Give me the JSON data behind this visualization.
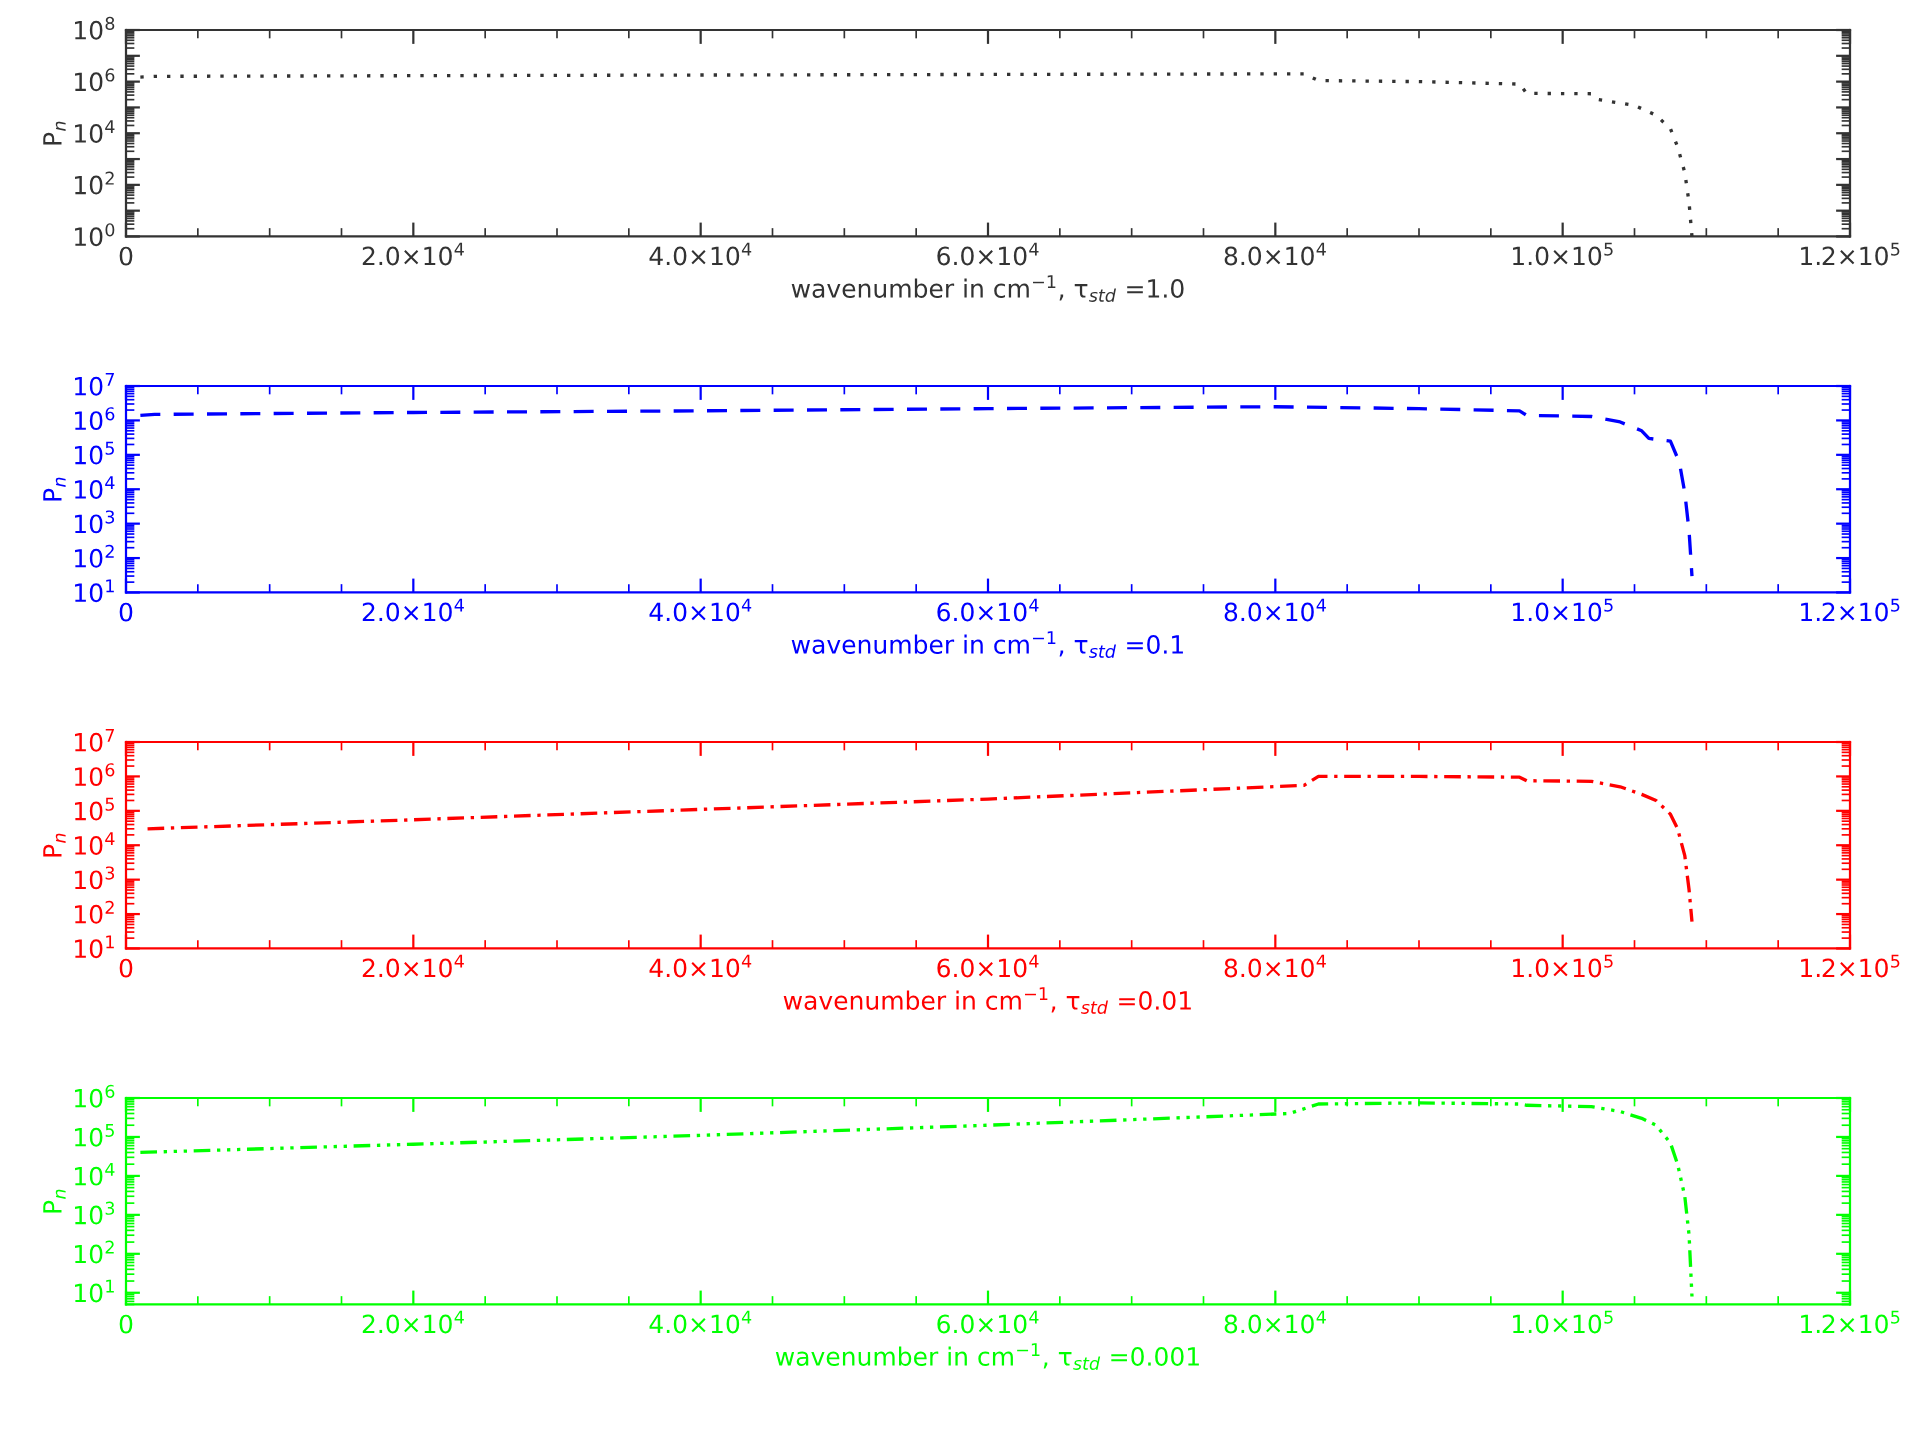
{
  "chart_data": [
    {
      "type": "line",
      "xlabel": "wavenumber in cm$^{−1}$, τ$_{std}$ =1.0",
      "ylabel": "P$_{n}$",
      "log": "y",
      "grid": false,
      "legend": false,
      "marker": "none",
      "xlim": [
        0,
        120000
      ],
      "xticks": [
        0,
        {
          "value": 20000,
          "label": "2.0×10$^{4}$"
        },
        {
          "value": 40000,
          "label": "4.0×10$^{4}$"
        },
        {
          "value": 60000,
          "label": "6.0×10$^{4}$"
        },
        {
          "value": 80000,
          "label": "8.0×10$^{4}$"
        },
        {
          "value": 100000,
          "label": "1.0×10$^{5}$"
        },
        {
          "value": 120000,
          "label": "1.2×10$^{5}$"
        }
      ],
      "ylim": [
        1,
        100000000
      ],
      "yticks": [
        {
          "value": 1,
          "label": "10$^{0}$"
        },
        {
          "value": 10,
          "label": null
        },
        {
          "value": 100,
          "label": "10$^{2}$"
        },
        {
          "value": 1000,
          "label": null
        },
        {
          "value": 10000,
          "label": "10$^{4}$"
        },
        {
          "value": 100000,
          "label": null
        },
        {
          "value": 1000000,
          "label": "10$^{6}$"
        },
        {
          "value": 10000000,
          "label": null
        },
        {
          "value": 100000000,
          "label": "10$^{8}$"
        }
      ],
      "series": [
        {
          "color": "#333333",
          "line_style": "dotted",
          "x": [
            1000,
            2000,
            20000,
            40000,
            60000,
            82000,
            83000,
            90000,
            97000,
            97500,
            102000,
            102500,
            105000,
            106500,
            107500,
            108000,
            108500,
            108800,
            109000
          ],
          "values": [
            1500000,
            1600000,
            1700000,
            1800000,
            1900000,
            2000000,
            1100000,
            1000000,
            800000,
            350000,
            340000,
            200000,
            120000,
            50000,
            15000,
            3000,
            300,
            20,
            1
          ]
        }
      ]
    },
    {
      "type": "line",
      "xlabel": "wavenumber in cm$^{−1}$, τ$_{std}$ =0.1",
      "ylabel": "P$_{n}$",
      "log": "y",
      "grid": false,
      "legend": false,
      "marker": "none",
      "xlim": [
        0,
        120000
      ],
      "xticks": [
        0,
        {
          "value": 20000,
          "label": "2.0×10$^{4}$"
        },
        {
          "value": 40000,
          "label": "4.0×10$^{4}$"
        },
        {
          "value": 60000,
          "label": "6.0×10$^{4}$"
        },
        {
          "value": 80000,
          "label": "8.0×10$^{4}$"
        },
        {
          "value": 100000,
          "label": "1.0×10$^{5}$"
        },
        {
          "value": 120000,
          "label": "1.2×10$^{5}$"
        }
      ],
      "ylim": [
        10,
        10000000
      ],
      "yticks": [
        {
          "value": 10,
          "label": "10$^{1}$"
        },
        {
          "value": 100,
          "label": "10$^{2}$"
        },
        {
          "value": 1000,
          "label": "10$^{3}$"
        },
        {
          "value": 10000,
          "label": "10$^{4}$"
        },
        {
          "value": 100000,
          "label": "10$^{5}$"
        },
        {
          "value": 1000000,
          "label": "10$^{6}$"
        },
        {
          "value": 10000000,
          "label": "10$^{7}$"
        }
      ],
      "series": [
        {
          "color": "#0000ff",
          "line_style": "dashed",
          "x": [
            1000,
            2000,
            20000,
            40000,
            60000,
            80000,
            90000,
            97000,
            97500,
            102000,
            104000,
            105500,
            106000,
            107500,
            108000,
            108200,
            108500,
            108800,
            109000
          ],
          "values": [
            1400000,
            1500000,
            1700000,
            1900000,
            2200000,
            2500000,
            2200000,
            1900000,
            1400000,
            1300000,
            900000,
            500000,
            300000,
            250000,
            80000,
            40000,
            8000,
            600,
            30
          ]
        }
      ]
    },
    {
      "type": "line",
      "xlabel": "wavenumber in cm$^{−1}$, τ$_{std}$ =0.01",
      "ylabel": "P$_{n}$",
      "log": "y",
      "grid": false,
      "legend": false,
      "marker": "none",
      "xlim": [
        0,
        120000
      ],
      "xticks": [
        0,
        {
          "value": 20000,
          "label": "2.0×10$^{4}$"
        },
        {
          "value": 40000,
          "label": "4.0×10$^{4}$"
        },
        {
          "value": 60000,
          "label": "6.0×10$^{4}$"
        },
        {
          "value": 80000,
          "label": "8.0×10$^{4}$"
        },
        {
          "value": 100000,
          "label": "1.0×10$^{5}$"
        },
        {
          "value": 120000,
          "label": "1.2×10$^{5}$"
        }
      ],
      "ylim": [
        10,
        10000000
      ],
      "yticks": [
        {
          "value": 10,
          "label": "10$^{1}$"
        },
        {
          "value": 100,
          "label": "10$^{2}$"
        },
        {
          "value": 1000,
          "label": "10$^{3}$"
        },
        {
          "value": 10000,
          "label": "10$^{4}$"
        },
        {
          "value": 100000,
          "label": "10$^{5}$"
        },
        {
          "value": 1000000,
          "label": "10$^{6}$"
        },
        {
          "value": 10000000,
          "label": "10$^{7}$"
        }
      ],
      "series": [
        {
          "color": "#ff0000",
          "line_style": "dashdot",
          "x": [
            1500,
            20000,
            40000,
            60000,
            82000,
            83000,
            90000,
            97000,
            97500,
            102000,
            104000,
            105500,
            106500,
            107500,
            108000,
            108500,
            108800,
            109000
          ],
          "values": [
            30000,
            55000,
            110000,
            220000,
            550000,
            1000000,
            1000000,
            950000,
            750000,
            720000,
            500000,
            300000,
            200000,
            80000,
            30000,
            5000,
            500,
            60
          ]
        }
      ]
    },
    {
      "type": "line",
      "xlabel": "wavenumber in cm$^{−1}$, τ$_{std}$ =0.001",
      "ylabel": "P$_{n}$",
      "log": "y",
      "grid": false,
      "legend": false,
      "marker": "none",
      "xlim": [
        0,
        120000
      ],
      "xticks": [
        0,
        {
          "value": 20000,
          "label": "2.0×10$^{4}$"
        },
        {
          "value": 40000,
          "label": "4.0×10$^{4}$"
        },
        {
          "value": 60000,
          "label": "6.0×10$^{4}$"
        },
        {
          "value": 80000,
          "label": "8.0×10$^{4}$"
        },
        {
          "value": 100000,
          "label": "1.0×10$^{5}$"
        },
        {
          "value": 120000,
          "label": "1.2×10$^{5}$"
        }
      ],
      "ylim": [
        5,
        1000000
      ],
      "yticks": [
        {
          "value": 10,
          "label": "10$^{1}$"
        },
        {
          "value": 100,
          "label": "10$^{2}$"
        },
        {
          "value": 1000,
          "label": "10$^{3}$"
        },
        {
          "value": 10000,
          "label": "10$^{4}$"
        },
        {
          "value": 100000,
          "label": "10$^{5}$"
        },
        {
          "value": 1000000,
          "label": "10$^{6}$"
        }
      ],
      "series": [
        {
          "color": "#00ff00",
          "line_style": "dashdotdotdot",
          "x": [
            1000,
            20000,
            40000,
            60000,
            81000,
            83000,
            90000,
            97000,
            97500,
            102000,
            104000,
            105500,
            106500,
            107500,
            108000,
            108500,
            108800,
            109000
          ],
          "values": [
            40000,
            65000,
            110000,
            200000,
            400000,
            700000,
            750000,
            700000,
            650000,
            600000,
            450000,
            300000,
            200000,
            70000,
            20000,
            3000,
            300,
            8
          ]
        }
      ]
    }
  ]
}
